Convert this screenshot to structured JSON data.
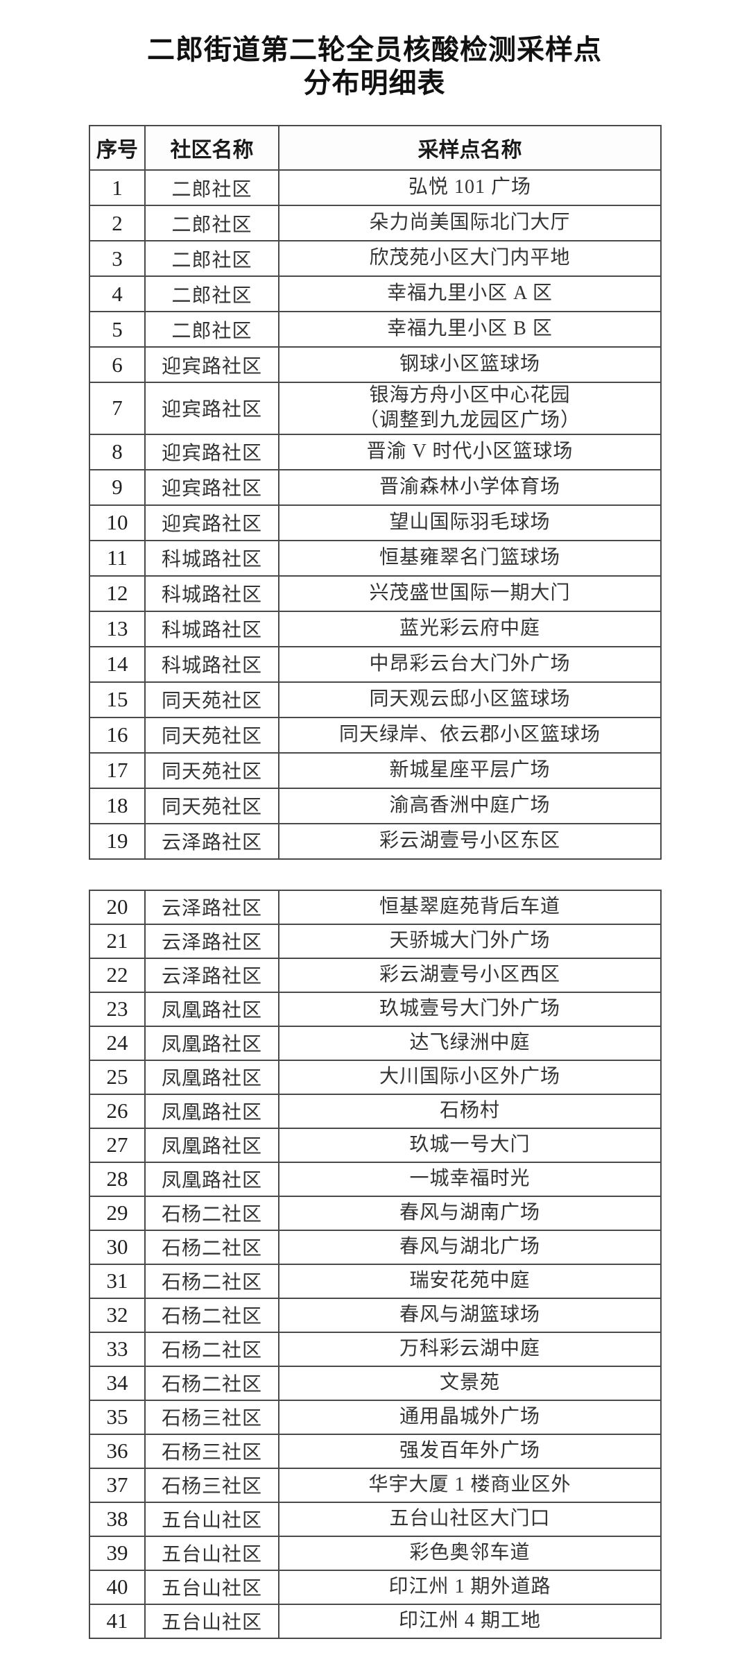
{
  "title": {
    "line1": "二郎街道第二轮全员核酸检测采样点",
    "line2": "分布明细表"
  },
  "colors": {
    "background": "#ffffff",
    "border": "#4a4a4a",
    "title_text": "#111111",
    "cell_text": "#333333"
  },
  "table": {
    "columns": [
      "序号",
      "社区名称",
      "采样点名称"
    ],
    "sections": [
      {
        "name": "part-1",
        "rows": [
          {
            "no": "1",
            "community": "二郎社区",
            "site": "弘悦 101 广场"
          },
          {
            "no": "2",
            "community": "二郎社区",
            "site": "朵力尚美国际北门大厅"
          },
          {
            "no": "3",
            "community": "二郎社区",
            "site": "欣茂苑小区大门内平地"
          },
          {
            "no": "4",
            "community": "二郎社区",
            "site": "幸福九里小区 A 区"
          },
          {
            "no": "5",
            "community": "二郎社区",
            "site": "幸福九里小区 B 区"
          },
          {
            "no": "6",
            "community": "迎宾路社区",
            "site": "钢球小区篮球场"
          },
          {
            "no": "7",
            "community": "迎宾路社区",
            "site": "银海方舟小区中心花园\n（调整到九龙园区广场）"
          },
          {
            "no": "8",
            "community": "迎宾路社区",
            "site": "晋渝 V 时代小区篮球场"
          },
          {
            "no": "9",
            "community": "迎宾路社区",
            "site": "晋渝森林小学体育场"
          },
          {
            "no": "10",
            "community": "迎宾路社区",
            "site": "望山国际羽毛球场"
          },
          {
            "no": "11",
            "community": "科城路社区",
            "site": "恒基雍翠名门篮球场"
          },
          {
            "no": "12",
            "community": "科城路社区",
            "site": "兴茂盛世国际一期大门"
          },
          {
            "no": "13",
            "community": "科城路社区",
            "site": "蓝光彩云府中庭"
          },
          {
            "no": "14",
            "community": "科城路社区",
            "site": "中昂彩云台大门外广场"
          },
          {
            "no": "15",
            "community": "同天苑社区",
            "site": "同天观云邸小区篮球场"
          },
          {
            "no": "16",
            "community": "同天苑社区",
            "site": "同天绿岸、依云郡小区篮球场"
          },
          {
            "no": "17",
            "community": "同天苑社区",
            "site": "新城星座平层广场"
          },
          {
            "no": "18",
            "community": "同天苑社区",
            "site": "渝高香洲中庭广场"
          },
          {
            "no": "19",
            "community": "云泽路社区",
            "site": "彩云湖壹号小区东区"
          }
        ]
      },
      {
        "name": "part-2",
        "rows": [
          {
            "no": "20",
            "community": "云泽路社区",
            "site": "恒基翠庭苑背后车道"
          },
          {
            "no": "21",
            "community": "云泽路社区",
            "site": "天骄城大门外广场"
          },
          {
            "no": "22",
            "community": "云泽路社区",
            "site": "彩云湖壹号小区西区"
          },
          {
            "no": "23",
            "community": "凤凰路社区",
            "site": "玖城壹号大门外广场"
          },
          {
            "no": "24",
            "community": "凤凰路社区",
            "site": "达飞绿洲中庭"
          },
          {
            "no": "25",
            "community": "凤凰路社区",
            "site": "大川国际小区外广场"
          },
          {
            "no": "26",
            "community": "凤凰路社区",
            "site": "石杨村"
          },
          {
            "no": "27",
            "community": "凤凰路社区",
            "site": "玖城一号大门"
          },
          {
            "no": "28",
            "community": "凤凰路社区",
            "site": "一城幸福时光"
          },
          {
            "no": "29",
            "community": "石杨二社区",
            "site": "春风与湖南广场"
          },
          {
            "no": "30",
            "community": "石杨二社区",
            "site": "春风与湖北广场"
          },
          {
            "no": "31",
            "community": "石杨二社区",
            "site": "瑞安花苑中庭"
          },
          {
            "no": "32",
            "community": "石杨二社区",
            "site": "春风与湖篮球场"
          },
          {
            "no": "33",
            "community": "石杨二社区",
            "site": "万科彩云湖中庭"
          },
          {
            "no": "34",
            "community": "石杨二社区",
            "site": "文景苑"
          },
          {
            "no": "35",
            "community": "石杨三社区",
            "site": "通用晶城外广场"
          },
          {
            "no": "36",
            "community": "石杨三社区",
            "site": "强发百年外广场"
          },
          {
            "no": "37",
            "community": "石杨三社区",
            "site": "华宇大厦 1 楼商业区外"
          },
          {
            "no": "38",
            "community": "五台山社区",
            "site": "五台山社区大门口"
          },
          {
            "no": "39",
            "community": "五台山社区",
            "site": "彩色奥邻车道"
          },
          {
            "no": "40",
            "community": "五台山社区",
            "site": "印江州 1 期外道路"
          },
          {
            "no": "41",
            "community": "五台山社区",
            "site": "印江州 4 期工地"
          }
        ]
      }
    ]
  }
}
